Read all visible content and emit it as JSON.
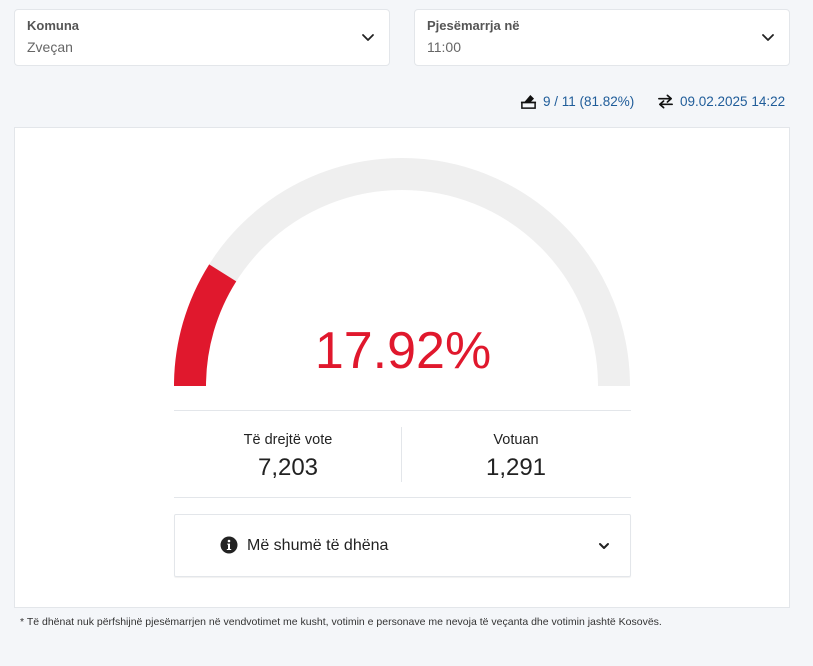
{
  "filters": {
    "komuna": {
      "label": "Komuna",
      "value": "Zveçan"
    },
    "pjesemarrja": {
      "label": "Pjesëmarrja në",
      "value": "11:00"
    }
  },
  "meta": {
    "stations": "9 / 11 (81.82%)",
    "updated": "09.02.2025 14:22"
  },
  "gauge": {
    "percent_text": "17.92%",
    "fraction": 0.1792,
    "fill_color": "#e0182d",
    "track_color": "#efefef"
  },
  "stats": {
    "eligible_label": "Të drejtë vote",
    "eligible_value": "7,203",
    "voted_label": "Votuan",
    "voted_value": "1,291"
  },
  "more": {
    "label": "Më shumë të dhëna"
  },
  "footnote": "* Të dhënat nuk përfshijnë pjesëmarrjen në vendvotimet me kusht, votimin e personave me nevoja të veçanta dhe votimin jashtë Kosovës."
}
